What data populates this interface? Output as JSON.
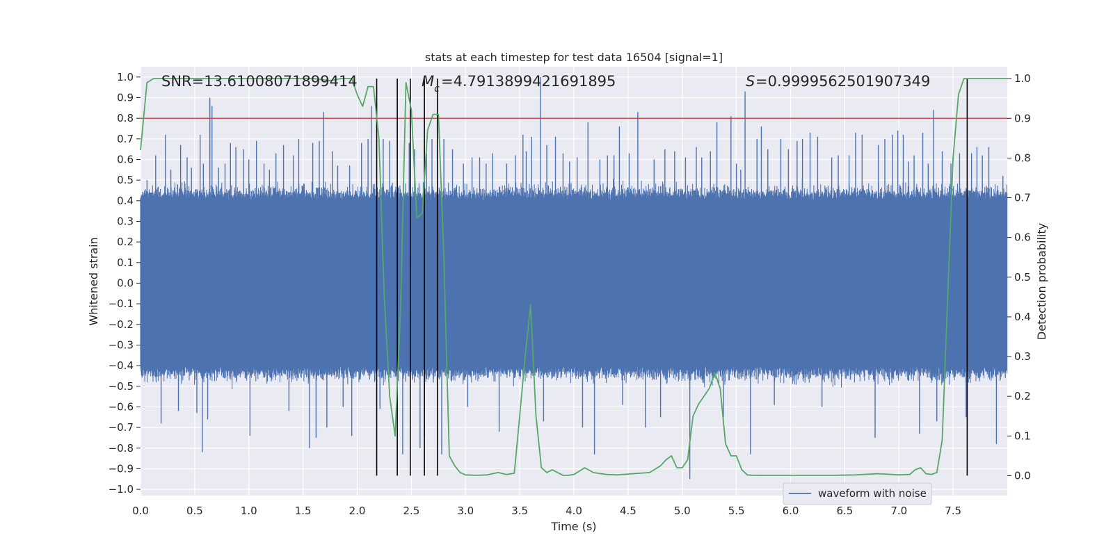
{
  "chart_data": {
    "type": "line",
    "title": "stats at each timestep for test data 16504 [signal=1]",
    "xlabel": "Time (s)",
    "ylabel": "Whitened strain",
    "y2label": "Detection probability",
    "xlim": [
      0.0,
      8.0
    ],
    "ylim": [
      -1.03,
      1.05
    ],
    "y2lim": [
      -0.05,
      1.03
    ],
    "xticks": [
      "0.0",
      "0.5",
      "1.0",
      "1.5",
      "2.0",
      "2.5",
      "3.0",
      "3.5",
      "4.0",
      "4.5",
      "5.0",
      "5.5",
      "6.0",
      "6.5",
      "7.0",
      "7.5"
    ],
    "yticks": [
      "1.0",
      "0.9",
      "0.8",
      "0.7",
      "0.6",
      "0.5",
      "0.4",
      "0.3",
      "0.2",
      "0.1",
      "0.0",
      "−0.1",
      "−0.2",
      "−0.3",
      "−0.4",
      "−0.5",
      "−0.6",
      "−0.7",
      "−0.8",
      "−0.9",
      "−1.0"
    ],
    "y2ticks": [
      "1.0",
      "0.9",
      "0.8",
      "0.7",
      "0.6",
      "0.5",
      "0.4",
      "0.3",
      "0.2",
      "0.1",
      "0.0"
    ],
    "annotations": {
      "snr": "SNR=13.61008071899414",
      "mc": "=4.7913899421691895",
      "s": "=0.9999562501907349"
    },
    "grid": true,
    "legend_position": "lower-right",
    "series": [
      {
        "name": "waveform with noise",
        "axis": "left",
        "kind": "noisy-strain",
        "color": "#4c72b0",
        "sample_rate": 512,
        "envelope": 0.4,
        "peaks": [
          [
            0.06,
            0.5
          ],
          [
            0.14,
            0.62
          ],
          [
            0.19,
            -0.68
          ],
          [
            0.23,
            0.72
          ],
          [
            0.28,
            0.55
          ],
          [
            0.35,
            -0.62
          ],
          [
            0.37,
            0.67
          ],
          [
            0.43,
            0.61
          ],
          [
            0.47,
            0.56
          ],
          [
            0.52,
            -0.63
          ],
          [
            0.55,
            0.72
          ],
          [
            0.57,
            -0.82
          ],
          [
            0.58,
            0.58
          ],
          [
            0.62,
            -0.66
          ],
          [
            0.64,
            0.9
          ],
          [
            0.66,
            0.86
          ],
          [
            0.72,
            0.56
          ],
          [
            0.78,
            0.58
          ],
          [
            0.83,
            0.68
          ],
          [
            0.88,
            0.66
          ],
          [
            0.95,
            0.65
          ],
          [
            1.0,
            0.6
          ],
          [
            1.01,
            -0.74
          ],
          [
            1.07,
            0.69
          ],
          [
            1.14,
            0.58
          ],
          [
            1.19,
            0.55
          ],
          [
            1.25,
            0.63
          ],
          [
            1.32,
            0.67
          ],
          [
            1.37,
            -0.62
          ],
          [
            1.41,
            0.62
          ],
          [
            1.46,
            0.7
          ],
          [
            1.56,
            -0.8
          ],
          [
            1.59,
            0.68
          ],
          [
            1.62,
            -0.75
          ],
          [
            1.65,
            0.69
          ],
          [
            1.69,
            0.83
          ],
          [
            1.72,
            -0.7
          ],
          [
            1.77,
            0.64
          ],
          [
            1.82,
            0.57
          ],
          [
            1.87,
            -0.6
          ],
          [
            1.93,
            0.57
          ],
          [
            1.95,
            -0.74
          ],
          [
            2.04,
            0.68
          ],
          [
            2.1,
            0.7
          ],
          [
            2.13,
            0.86
          ],
          [
            2.21,
            -0.61
          ],
          [
            2.24,
            0.7
          ],
          [
            2.3,
            0.69
          ],
          [
            2.42,
            -0.83
          ],
          [
            2.48,
            0.68
          ],
          [
            2.53,
            0.65
          ],
          [
            2.58,
            -0.8
          ],
          [
            2.62,
            -0.74
          ],
          [
            2.64,
            0.63
          ],
          [
            2.69,
            0.7
          ],
          [
            2.78,
            -0.83
          ],
          [
            2.8,
            0.7
          ],
          [
            2.88,
            0.65
          ],
          [
            2.98,
            0.58
          ],
          [
            3.02,
            -0.6
          ],
          [
            3.06,
            0.61
          ],
          [
            3.13,
            0.61
          ],
          [
            3.19,
            0.58
          ],
          [
            3.25,
            0.63
          ],
          [
            3.31,
            -0.72
          ],
          [
            3.38,
            0.58
          ],
          [
            3.46,
            0.62
          ],
          [
            3.53,
            0.72
          ],
          [
            3.56,
            0.64
          ],
          [
            3.61,
            0.71
          ],
          [
            3.69,
            1.0
          ],
          [
            3.72,
            -0.67
          ],
          [
            3.75,
            0.67
          ],
          [
            3.83,
            0.71
          ],
          [
            3.9,
            0.63
          ],
          [
            3.96,
            0.59
          ],
          [
            4.03,
            0.61
          ],
          [
            4.08,
            -0.7
          ],
          [
            4.13,
            0.78
          ],
          [
            4.19,
            -0.83
          ],
          [
            4.24,
            0.6
          ],
          [
            4.31,
            0.62
          ],
          [
            4.37,
            0.62
          ],
          [
            4.42,
            0.76
          ],
          [
            4.45,
            -0.59
          ],
          [
            4.51,
            0.63
          ],
          [
            4.59,
            0.83
          ],
          [
            4.66,
            -0.7
          ],
          [
            4.74,
            0.6
          ],
          [
            4.8,
            -0.65
          ],
          [
            4.84,
            0.65
          ],
          [
            4.93,
            0.64
          ],
          [
            5.03,
            0.61
          ],
          [
            5.07,
            -0.95
          ],
          [
            5.13,
            0.66
          ],
          [
            5.18,
            0.61
          ],
          [
            5.26,
            0.64
          ],
          [
            5.32,
            0.78
          ],
          [
            5.38,
            -0.65
          ],
          [
            5.45,
            0.81
          ],
          [
            5.5,
            0.58
          ],
          [
            5.54,
            0.55
          ],
          [
            5.58,
            0.93
          ],
          [
            5.63,
            -0.83
          ],
          [
            5.69,
            0.7
          ],
          [
            5.73,
            0.76
          ],
          [
            5.79,
            0.65
          ],
          [
            5.85,
            -0.59
          ],
          [
            5.91,
            0.7
          ],
          [
            5.98,
            0.65
          ],
          [
            6.06,
            0.69
          ],
          [
            6.11,
            0.7
          ],
          [
            6.18,
            0.73
          ],
          [
            6.25,
            0.71
          ],
          [
            6.29,
            -0.6
          ],
          [
            6.38,
            0.61
          ],
          [
            6.44,
            0.62
          ],
          [
            6.54,
            0.62
          ],
          [
            6.6,
            0.73
          ],
          [
            6.66,
            0.72
          ],
          [
            6.78,
            -0.75
          ],
          [
            6.81,
            0.67
          ],
          [
            6.87,
            0.7
          ],
          [
            6.94,
            0.72
          ],
          [
            6.99,
            0.74
          ],
          [
            7.04,
            0.72
          ],
          [
            7.09,
            0.59
          ],
          [
            7.14,
            0.62
          ],
          [
            7.19,
            -0.73
          ],
          [
            7.22,
            0.73
          ],
          [
            7.27,
            0.58
          ],
          [
            7.32,
            0.84
          ],
          [
            7.35,
            -0.67
          ],
          [
            7.4,
            0.64
          ],
          [
            7.48,
            0.58
          ],
          [
            7.56,
            0.63
          ],
          [
            7.62,
            -0.65
          ],
          [
            7.67,
            0.63
          ],
          [
            7.72,
            0.66
          ],
          [
            7.77,
            0.62
          ],
          [
            7.83,
            0.66
          ],
          [
            7.9,
            -0.78
          ],
          [
            7.96,
            0.52
          ]
        ]
      },
      {
        "name": "",
        "axis": "right",
        "kind": "line",
        "color": "#55a868",
        "x": [
          0.0,
          0.06,
          0.12,
          0.2,
          0.4,
          0.8,
          1.2,
          1.6,
          1.75,
          1.85,
          1.95,
          2.0,
          2.05,
          2.1,
          2.15,
          2.2,
          2.25,
          2.3,
          2.35,
          2.4,
          2.45,
          2.5,
          2.55,
          2.6,
          2.65,
          2.7,
          2.75,
          2.8,
          2.85,
          2.9,
          2.95,
          3.0,
          3.1,
          3.2,
          3.3,
          3.38,
          3.45,
          3.5,
          3.55,
          3.6,
          3.65,
          3.7,
          3.75,
          3.8,
          3.85,
          3.9,
          3.95,
          4.0,
          4.1,
          4.18,
          4.25,
          4.3,
          4.4,
          4.5,
          4.6,
          4.7,
          4.8,
          4.85,
          4.9,
          4.95,
          5.0,
          5.05,
          5.1,
          5.15,
          5.2,
          5.25,
          5.3,
          5.35,
          5.4,
          5.45,
          5.5,
          5.55,
          5.6,
          5.65,
          5.7,
          5.75,
          5.8,
          5.9,
          6.0,
          6.2,
          6.4,
          6.6,
          6.8,
          7.0,
          7.1,
          7.15,
          7.2,
          7.25,
          7.3,
          7.35,
          7.4,
          7.45,
          7.5,
          7.55,
          7.6,
          7.65,
          7.7,
          7.75,
          7.8,
          7.9,
          8.0
        ],
        "y": [
          0.82,
          0.99,
          1.0,
          1.0,
          1.0,
          1.0,
          1.0,
          1.0,
          0.995,
          1.0,
          1.0,
          0.96,
          0.93,
          0.98,
          0.98,
          0.85,
          0.45,
          0.2,
          0.1,
          0.42,
          0.99,
          0.92,
          0.65,
          0.66,
          0.87,
          0.91,
          0.91,
          0.55,
          0.05,
          0.025,
          0.008,
          0.002,
          0.001,
          0.002,
          0.008,
          0.003,
          0.006,
          0.15,
          0.3,
          0.43,
          0.15,
          0.02,
          0.008,
          0.015,
          0.008,
          0.001,
          0.001,
          0.003,
          0.02,
          0.008,
          0.005,
          0.003,
          0.002,
          0.004,
          0.006,
          0.008,
          0.025,
          0.04,
          0.05,
          0.02,
          0.02,
          0.04,
          0.15,
          0.18,
          0.2,
          0.22,
          0.26,
          0.22,
          0.08,
          0.05,
          0.05,
          0.015,
          0.002,
          0.001,
          0.001,
          0.001,
          0.001,
          0.001,
          0.001,
          0.001,
          0.001,
          0.002,
          0.005,
          0.002,
          0.003,
          0.015,
          0.02,
          0.005,
          0.003,
          0.008,
          0.09,
          0.45,
          0.8,
          0.96,
          1.0,
          1.0,
          1.0,
          1.0,
          1.0,
          1.0,
          1.0
        ]
      }
    ],
    "hlines": [
      {
        "axis": "right",
        "y": 0.9,
        "color": "#c44e52"
      }
    ],
    "vlines": [
      2.18,
      2.37,
      2.49,
      2.62,
      2.74,
      7.63
    ],
    "vline_color": "#000000"
  }
}
